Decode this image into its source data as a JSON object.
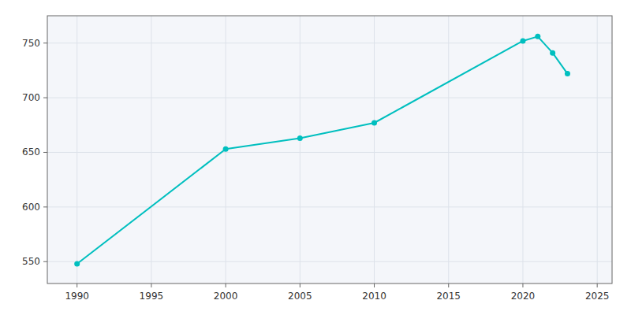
{
  "chart_data": {
    "type": "line",
    "x": [
      1990,
      2000,
      2005,
      2010,
      2020,
      2021,
      2022,
      2023
    ],
    "values": [
      548,
      653,
      663,
      677,
      752,
      756,
      741,
      722
    ],
    "color": "#00BFBF",
    "marker": "circle",
    "xlim": [
      1988,
      2026
    ],
    "ylim": [
      530,
      775
    ],
    "xticks": [
      1990,
      1995,
      2000,
      2005,
      2010,
      2015,
      2020,
      2025
    ],
    "yticks": [
      550,
      600,
      650,
      700,
      750
    ],
    "grid": true
  }
}
